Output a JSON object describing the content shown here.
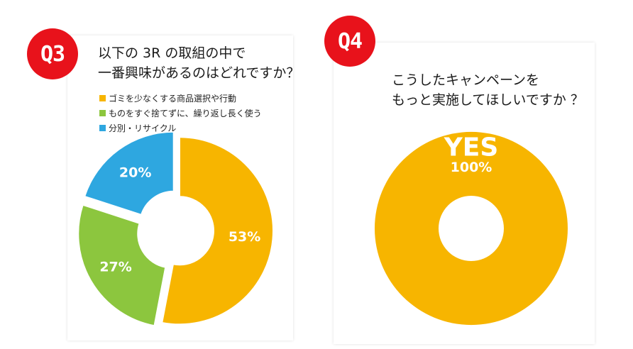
{
  "q3": {
    "badge": "Q3",
    "title_line1": "以下の 3R の取組の中で",
    "title_line2": "一番興味があるのはどれですか？"
  },
  "q4": {
    "badge": "Q4",
    "title_line1": "こうしたキャンペーンを",
    "title_line2": "もっと実施してほしいですか ？"
  },
  "colors": {
    "badge_red": "#e8121b",
    "orange": "#f7b500",
    "green": "#8cc63e",
    "blue": "#2ea7e0"
  },
  "chart_data": [
    {
      "type": "pie",
      "variant": "donut",
      "legend_position": "top-left",
      "categories": [
        "ゴミを少なくする商品選択や行動",
        "ものをすぐ捨てずに、繰り返し長く使う",
        "分別・リサイクル"
      ],
      "values": [
        53,
        27,
        20
      ],
      "labels": [
        "53%",
        "27%",
        "20%"
      ],
      "colors": [
        "#f7b500",
        "#8cc63e",
        "#2ea7e0"
      ],
      "exploded": true
    },
    {
      "type": "pie",
      "variant": "donut",
      "categories": [
        "YES"
      ],
      "values": [
        100
      ],
      "labels": [
        "100%"
      ],
      "colors": [
        "#f7b500"
      ]
    }
  ]
}
